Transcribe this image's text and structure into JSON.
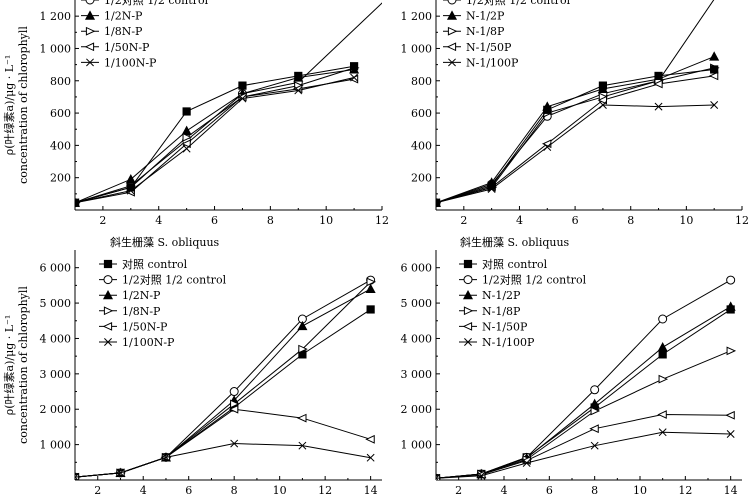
{
  "chart_data": [
    {
      "type": "line",
      "title": "",
      "ylabel_top": "ρ(叶绿素a)/μg · L⁻¹",
      "ylabel_bottom": "concentration of chlorophyll",
      "xlim": [
        1,
        12
      ],
      "ylim": [
        0,
        1300
      ],
      "xticks": [
        "2",
        "4",
        "6",
        "8",
        "10",
        "12"
      ],
      "yticks": [
        "200",
        "400",
        "600",
        "800",
        "1 000",
        "1 200"
      ],
      "series": [
        {
          "name": "1/2对照 1/2 control",
          "marker": "circle-open",
          "x": [
            1,
            3,
            5,
            7,
            9,
            12.3
          ],
          "y": [
            45,
            150,
            430,
            720,
            790,
            1330
          ]
        },
        {
          "name": "1/2N-P",
          "marker": "triangle-filled",
          "x": [
            1,
            3,
            5,
            7,
            9,
            11
          ],
          "y": [
            45,
            190,
            490,
            720,
            820,
            870
          ]
        },
        {
          "name": "1/8N-P",
          "marker": "triangle-right-open",
          "x": [
            1,
            3,
            5,
            7,
            9,
            11
          ],
          "y": [
            45,
            140,
            450,
            700,
            770,
            880
          ]
        },
        {
          "name": "1/50N-P",
          "marker": "triangle-left-open",
          "x": [
            1,
            3,
            5,
            7,
            9,
            11
          ],
          "y": [
            45,
            110,
            410,
            700,
            750,
            810
          ]
        },
        {
          "name": "1/100N-P",
          "marker": "cross",
          "x": [
            1,
            3,
            5,
            7,
            9,
            11
          ],
          "y": [
            45,
            120,
            380,
            690,
            740,
            820
          ]
        },
        {
          "name": "",
          "marker": "square-filled",
          "x": [
            1,
            3,
            5,
            7,
            9,
            11
          ],
          "y": [
            45,
            140,
            610,
            770,
            830,
            890
          ]
        }
      ]
    },
    {
      "type": "line",
      "title": "",
      "xlim": [
        1,
        12
      ],
      "ylim": [
        0,
        1300
      ],
      "xticks": [
        "2",
        "4",
        "6",
        "8",
        "10",
        "12"
      ],
      "yticks": [
        "200",
        "400",
        "600",
        "800",
        "1 000",
        "1 200"
      ],
      "series": [
        {
          "name": "1/2对照 1/2 control",
          "marker": "circle-open",
          "x": [
            1,
            3,
            5,
            7,
            9,
            11.1
          ],
          "y": [
            45,
            160,
            580,
            720,
            800,
            1330
          ]
        },
        {
          "name": "N-1/2P",
          "marker": "triangle-filled",
          "x": [
            1,
            3,
            5,
            7,
            9,
            11
          ],
          "y": [
            45,
            170,
            640,
            750,
            810,
            950
          ]
        },
        {
          "name": "N-1/8P",
          "marker": "triangle-right-open",
          "x": [
            1,
            3,
            5,
            7,
            9,
            11
          ],
          "y": [
            45,
            140,
            600,
            700,
            800,
            880
          ]
        },
        {
          "name": "N-1/50P",
          "marker": "triangle-left-open",
          "x": [
            1,
            3,
            5,
            7,
            9,
            11
          ],
          "y": [
            45,
            140,
            410,
            680,
            780,
            830
          ]
        },
        {
          "name": "N-1/100P",
          "marker": "cross",
          "x": [
            1,
            3,
            5,
            7,
            9,
            11
          ],
          "y": [
            45,
            130,
            390,
            650,
            640,
            650
          ]
        },
        {
          "name": "",
          "marker": "square-filled",
          "x": [
            1,
            3,
            5,
            7,
            9,
            11
          ],
          "y": [
            45,
            150,
            620,
            770,
            830,
            870
          ]
        }
      ]
    },
    {
      "type": "line",
      "title": "斜生栅藻 S. obliquus",
      "ylabel_top": "ρ(叶绿素a)/μg · L⁻¹",
      "ylabel_bottom": "concentration of chlorophyll",
      "xlim": [
        1,
        14.5
      ],
      "ylim": [
        0,
        6500
      ],
      "xticks": [
        "2",
        "4",
        "6",
        "8",
        "10",
        "12",
        "14"
      ],
      "yticks": [
        "1 000",
        "2 000",
        "3 000",
        "4 000",
        "5 000",
        "6 000"
      ],
      "series": [
        {
          "name": "对照 control",
          "marker": "square-filled",
          "x": [
            1,
            3,
            5,
            8,
            11,
            14
          ],
          "y": [
            80,
            200,
            640,
            2050,
            3550,
            4820
          ]
        },
        {
          "name": "1/2对照 1/2 control",
          "marker": "circle-open",
          "x": [
            1,
            3,
            5,
            8,
            11,
            14
          ],
          "y": [
            80,
            200,
            640,
            2500,
            4550,
            5650
          ]
        },
        {
          "name": "1/2N-P",
          "marker": "triangle-filled",
          "x": [
            1,
            3,
            5,
            8,
            11,
            14
          ],
          "y": [
            80,
            200,
            640,
            2250,
            4350,
            5400
          ]
        },
        {
          "name": "1/8N-P",
          "marker": "triangle-right-open",
          "x": [
            1,
            3,
            5,
            8,
            11,
            14
          ],
          "y": [
            80,
            200,
            640,
            2150,
            3700,
            5600
          ]
        },
        {
          "name": "1/50N-P",
          "marker": "triangle-left-open",
          "x": [
            1,
            3,
            5,
            8,
            11,
            14
          ],
          "y": [
            80,
            200,
            640,
            2000,
            1750,
            1150
          ]
        },
        {
          "name": "1/100N-P",
          "marker": "cross",
          "x": [
            1,
            3,
            5,
            8,
            11,
            14
          ],
          "y": [
            80,
            200,
            640,
            1030,
            970,
            630
          ]
        }
      ]
    },
    {
      "type": "line",
      "title": "斜生栅藻 S. obliquus",
      "xlim": [
        1,
        14.5
      ],
      "ylim": [
        0,
        6500
      ],
      "xticks": [
        "2",
        "4",
        "6",
        "8",
        "10",
        "12",
        "14"
      ],
      "yticks": [
        "1 000",
        "2 000",
        "3 000",
        "4 000",
        "5 000",
        "6 000"
      ],
      "series": [
        {
          "name": "对照 control",
          "marker": "square-filled",
          "x": [
            1,
            3,
            5,
            8,
            11,
            14
          ],
          "y": [
            50,
            170,
            640,
            2050,
            3550,
            4820
          ]
        },
        {
          "name": "1/2对照 1/2 control",
          "marker": "circle-open",
          "x": [
            1,
            3,
            5,
            8,
            11,
            14
          ],
          "y": [
            50,
            170,
            640,
            2550,
            4550,
            5650
          ]
        },
        {
          "name": "N-1/2P",
          "marker": "triangle-filled",
          "x": [
            1,
            3,
            5,
            8,
            11,
            14
          ],
          "y": [
            50,
            170,
            620,
            2150,
            3750,
            4900
          ]
        },
        {
          "name": "N-1/8P",
          "marker": "triangle-right-open",
          "x": [
            1,
            3,
            5,
            8,
            11,
            14
          ],
          "y": [
            50,
            170,
            580,
            1950,
            2850,
            3650
          ]
        },
        {
          "name": "N-1/50P",
          "marker": "triangle-left-open",
          "x": [
            1,
            3,
            5,
            8,
            11,
            14
          ],
          "y": [
            50,
            150,
            550,
            1450,
            1850,
            1830
          ]
        },
        {
          "name": "N-1/100P",
          "marker": "cross",
          "x": [
            1,
            3,
            5,
            8,
            11,
            14
          ],
          "y": [
            50,
            120,
            480,
            970,
            1350,
            1300
          ]
        }
      ]
    }
  ]
}
